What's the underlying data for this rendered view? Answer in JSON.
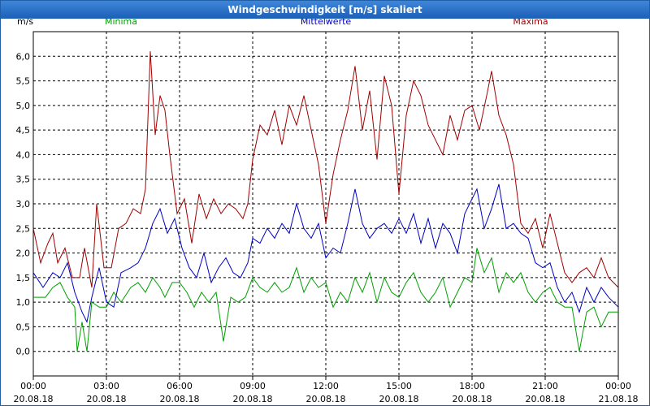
{
  "window": {
    "title": "Windgeschwindigkeit [m/s] skaliert"
  },
  "chart_data": {
    "type": "line",
    "title": "Windgeschwindigkeit [m/s] skaliert",
    "ylabel": "m/s",
    "xlabel": "",
    "ylim": [
      -0.5,
      6.5
    ],
    "xlim": [
      0,
      24
    ],
    "grid": true,
    "legend_placement": "top",
    "y_ticks": [
      {
        "value": 0.0,
        "label": "0,0"
      },
      {
        "value": 0.5,
        "label": "0,5"
      },
      {
        "value": 1.0,
        "label": "1,0"
      },
      {
        "value": 1.5,
        "label": "1,5"
      },
      {
        "value": 2.0,
        "label": "2,0"
      },
      {
        "value": 2.5,
        "label": "2,5"
      },
      {
        "value": 3.0,
        "label": "3,0"
      },
      {
        "value": 3.5,
        "label": "3,5"
      },
      {
        "value": 4.0,
        "label": "4,0"
      },
      {
        "value": 4.5,
        "label": "4,5"
      },
      {
        "value": 5.0,
        "label": "5,0"
      },
      {
        "value": 5.5,
        "label": "5,5"
      },
      {
        "value": 6.0,
        "label": "6,0"
      }
    ],
    "x_ticks": [
      {
        "value": 0,
        "time": "00:00",
        "date": "20.08.18"
      },
      {
        "value": 3,
        "time": "03:00",
        "date": "20.08.18"
      },
      {
        "value": 6,
        "time": "06:00",
        "date": "20.08.18"
      },
      {
        "value": 9,
        "time": "09:00",
        "date": "20.08.18"
      },
      {
        "value": 12,
        "time": "12:00",
        "date": "20.08.18"
      },
      {
        "value": 15,
        "time": "15:00",
        "date": "20.08.18"
      },
      {
        "value": 18,
        "time": "18:00",
        "date": "20.08.18"
      },
      {
        "value": 21,
        "time": "21:00",
        "date": "20.08.18"
      },
      {
        "value": 24,
        "time": "00:00",
        "date": "21.08.18"
      }
    ],
    "series": [
      {
        "name": "Minima",
        "color": "#00a000",
        "points": [
          [
            0,
            1.1
          ],
          [
            0.5,
            1.1
          ],
          [
            0.8,
            1.3
          ],
          [
            1.1,
            1.4
          ],
          [
            1.4,
            1.1
          ],
          [
            1.7,
            0.9
          ],
          [
            1.8,
            0.0
          ],
          [
            2.0,
            0.6
          ],
          [
            2.2,
            0.0
          ],
          [
            2.4,
            1.0
          ],
          [
            2.7,
            0.9
          ],
          [
            3.0,
            0.9
          ],
          [
            3.3,
            1.2
          ],
          [
            3.6,
            1.0
          ],
          [
            4.0,
            1.3
          ],
          [
            4.3,
            1.4
          ],
          [
            4.6,
            1.2
          ],
          [
            4.9,
            1.5
          ],
          [
            5.2,
            1.3
          ],
          [
            5.4,
            1.1
          ],
          [
            5.7,
            1.4
          ],
          [
            6.0,
            1.4
          ],
          [
            6.3,
            1.2
          ],
          [
            6.6,
            0.9
          ],
          [
            6.9,
            1.2
          ],
          [
            7.2,
            1.0
          ],
          [
            7.5,
            1.2
          ],
          [
            7.8,
            0.2
          ],
          [
            8.1,
            1.1
          ],
          [
            8.4,
            1.0
          ],
          [
            8.7,
            1.1
          ],
          [
            9.0,
            1.5
          ],
          [
            9.3,
            1.3
          ],
          [
            9.6,
            1.2
          ],
          [
            9.9,
            1.4
          ],
          [
            10.2,
            1.2
          ],
          [
            10.5,
            1.3
          ],
          [
            10.8,
            1.7
          ],
          [
            11.1,
            1.2
          ],
          [
            11.4,
            1.5
          ],
          [
            11.7,
            1.3
          ],
          [
            12.0,
            1.4
          ],
          [
            12.3,
            0.9
          ],
          [
            12.6,
            1.2
          ],
          [
            12.9,
            1.0
          ],
          [
            13.2,
            1.5
          ],
          [
            13.5,
            1.2
          ],
          [
            13.8,
            1.6
          ],
          [
            14.1,
            1.0
          ],
          [
            14.4,
            1.5
          ],
          [
            14.7,
            1.2
          ],
          [
            15.0,
            1.1
          ],
          [
            15.3,
            1.4
          ],
          [
            15.6,
            1.6
          ],
          [
            15.9,
            1.2
          ],
          [
            16.2,
            1.0
          ],
          [
            16.5,
            1.2
          ],
          [
            16.8,
            1.5
          ],
          [
            17.1,
            0.9
          ],
          [
            17.4,
            1.2
          ],
          [
            17.7,
            1.5
          ],
          [
            18.0,
            1.4
          ],
          [
            18.2,
            2.1
          ],
          [
            18.5,
            1.6
          ],
          [
            18.8,
            1.9
          ],
          [
            19.1,
            1.2
          ],
          [
            19.4,
            1.6
          ],
          [
            19.7,
            1.4
          ],
          [
            20.0,
            1.6
          ],
          [
            20.3,
            1.2
          ],
          [
            20.6,
            1.0
          ],
          [
            20.9,
            1.2
          ],
          [
            21.2,
            1.3
          ],
          [
            21.5,
            1.0
          ],
          [
            21.8,
            0.9
          ],
          [
            22.1,
            0.9
          ],
          [
            22.4,
            0.0
          ],
          [
            22.7,
            0.8
          ],
          [
            23.0,
            0.9
          ],
          [
            23.3,
            0.5
          ],
          [
            23.6,
            0.8
          ],
          [
            24.0,
            0.8
          ]
        ]
      },
      {
        "name": "Mittelwerte",
        "color": "#0000c0",
        "points": [
          [
            0,
            1.6
          ],
          [
            0.4,
            1.3
          ],
          [
            0.8,
            1.6
          ],
          [
            1.1,
            1.5
          ],
          [
            1.4,
            1.8
          ],
          [
            1.7,
            1.2
          ],
          [
            2.0,
            0.8
          ],
          [
            2.2,
            0.6
          ],
          [
            2.4,
            1.1
          ],
          [
            2.7,
            1.7
          ],
          [
            3.0,
            1.0
          ],
          [
            3.3,
            0.9
          ],
          [
            3.6,
            1.6
          ],
          [
            4.0,
            1.7
          ],
          [
            4.3,
            1.8
          ],
          [
            4.6,
            2.1
          ],
          [
            4.9,
            2.6
          ],
          [
            5.2,
            2.9
          ],
          [
            5.5,
            2.4
          ],
          [
            5.8,
            2.7
          ],
          [
            6.1,
            2.1
          ],
          [
            6.4,
            1.7
          ],
          [
            6.7,
            1.5
          ],
          [
            7.0,
            2.0
          ],
          [
            7.3,
            1.4
          ],
          [
            7.6,
            1.7
          ],
          [
            7.9,
            1.9
          ],
          [
            8.2,
            1.6
          ],
          [
            8.5,
            1.5
          ],
          [
            8.8,
            1.8
          ],
          [
            9.0,
            2.3
          ],
          [
            9.3,
            2.2
          ],
          [
            9.6,
            2.5
          ],
          [
            9.9,
            2.3
          ],
          [
            10.2,
            2.6
          ],
          [
            10.5,
            2.4
          ],
          [
            10.8,
            3.0
          ],
          [
            11.1,
            2.5
          ],
          [
            11.4,
            2.3
          ],
          [
            11.7,
            2.6
          ],
          [
            12.0,
            1.9
          ],
          [
            12.3,
            2.1
          ],
          [
            12.6,
            2.0
          ],
          [
            12.9,
            2.6
          ],
          [
            13.2,
            3.3
          ],
          [
            13.5,
            2.6
          ],
          [
            13.8,
            2.3
          ],
          [
            14.1,
            2.5
          ],
          [
            14.4,
            2.6
          ],
          [
            14.7,
            2.4
          ],
          [
            15.0,
            2.7
          ],
          [
            15.3,
            2.4
          ],
          [
            15.6,
            2.8
          ],
          [
            15.9,
            2.2
          ],
          [
            16.2,
            2.7
          ],
          [
            16.5,
            2.1
          ],
          [
            16.8,
            2.6
          ],
          [
            17.1,
            2.4
          ],
          [
            17.4,
            2.0
          ],
          [
            17.7,
            2.8
          ],
          [
            18.0,
            3.1
          ],
          [
            18.2,
            3.3
          ],
          [
            18.5,
            2.5
          ],
          [
            18.8,
            2.9
          ],
          [
            19.1,
            3.4
          ],
          [
            19.4,
            2.5
          ],
          [
            19.7,
            2.6
          ],
          [
            20.0,
            2.4
          ],
          [
            20.3,
            2.3
          ],
          [
            20.6,
            1.8
          ],
          [
            20.9,
            1.7
          ],
          [
            21.2,
            1.8
          ],
          [
            21.5,
            1.3
          ],
          [
            21.8,
            1.0
          ],
          [
            22.1,
            1.2
          ],
          [
            22.4,
            0.8
          ],
          [
            22.7,
            1.3
          ],
          [
            23.0,
            1.0
          ],
          [
            23.3,
            1.3
          ],
          [
            23.6,
            1.1
          ],
          [
            24.0,
            0.9
          ]
        ]
      },
      {
        "name": "Maxima",
        "color": "#a00000",
        "points": [
          [
            0,
            2.5
          ],
          [
            0.3,
            1.8
          ],
          [
            0.6,
            2.2
          ],
          [
            0.8,
            2.4
          ],
          [
            1.0,
            1.8
          ],
          [
            1.3,
            2.1
          ],
          [
            1.6,
            1.5
          ],
          [
            1.9,
            1.5
          ],
          [
            2.1,
            2.1
          ],
          [
            2.4,
            1.3
          ],
          [
            2.6,
            3.0
          ],
          [
            2.9,
            1.7
          ],
          [
            3.2,
            1.7
          ],
          [
            3.5,
            2.5
          ],
          [
            3.8,
            2.6
          ],
          [
            4.1,
            2.9
          ],
          [
            4.4,
            2.8
          ],
          [
            4.6,
            3.3
          ],
          [
            4.8,
            6.1
          ],
          [
            5.0,
            4.4
          ],
          [
            5.2,
            5.2
          ],
          [
            5.4,
            4.9
          ],
          [
            5.6,
            4.0
          ],
          [
            5.9,
            2.8
          ],
          [
            6.2,
            3.1
          ],
          [
            6.5,
            2.2
          ],
          [
            6.8,
            3.2
          ],
          [
            7.1,
            2.7
          ],
          [
            7.4,
            3.1
          ],
          [
            7.7,
            2.8
          ],
          [
            8.0,
            3.0
          ],
          [
            8.3,
            2.9
          ],
          [
            8.6,
            2.7
          ],
          [
            8.8,
            3.0
          ],
          [
            9.0,
            3.9
          ],
          [
            9.3,
            4.6
          ],
          [
            9.6,
            4.4
          ],
          [
            9.9,
            4.9
          ],
          [
            10.2,
            4.2
          ],
          [
            10.5,
            5.0
          ],
          [
            10.8,
            4.6
          ],
          [
            11.1,
            5.2
          ],
          [
            11.4,
            4.5
          ],
          [
            11.7,
            3.8
          ],
          [
            12.0,
            2.6
          ],
          [
            12.3,
            3.6
          ],
          [
            12.6,
            4.3
          ],
          [
            12.9,
            4.9
          ],
          [
            13.2,
            5.8
          ],
          [
            13.5,
            4.5
          ],
          [
            13.8,
            5.3
          ],
          [
            14.1,
            3.9
          ],
          [
            14.4,
            5.6
          ],
          [
            14.7,
            5.0
          ],
          [
            15.0,
            3.2
          ],
          [
            15.3,
            4.8
          ],
          [
            15.6,
            5.5
          ],
          [
            15.9,
            5.2
          ],
          [
            16.2,
            4.6
          ],
          [
            16.5,
            4.3
          ],
          [
            16.8,
            4.0
          ],
          [
            17.1,
            4.8
          ],
          [
            17.4,
            4.3
          ],
          [
            17.7,
            4.9
          ],
          [
            18.0,
            5.0
          ],
          [
            18.3,
            4.5
          ],
          [
            18.6,
            5.2
          ],
          [
            18.8,
            5.7
          ],
          [
            19.1,
            4.8
          ],
          [
            19.4,
            4.4
          ],
          [
            19.7,
            3.8
          ],
          [
            20.0,
            2.6
          ],
          [
            20.3,
            2.4
          ],
          [
            20.6,
            2.7
          ],
          [
            20.9,
            2.1
          ],
          [
            21.2,
            2.8
          ],
          [
            21.5,
            2.2
          ],
          [
            21.8,
            1.6
          ],
          [
            22.1,
            1.4
          ],
          [
            22.4,
            1.6
          ],
          [
            22.7,
            1.7
          ],
          [
            23.0,
            1.5
          ],
          [
            23.3,
            1.9
          ],
          [
            23.6,
            1.5
          ],
          [
            24.0,
            1.3
          ]
        ]
      }
    ]
  }
}
